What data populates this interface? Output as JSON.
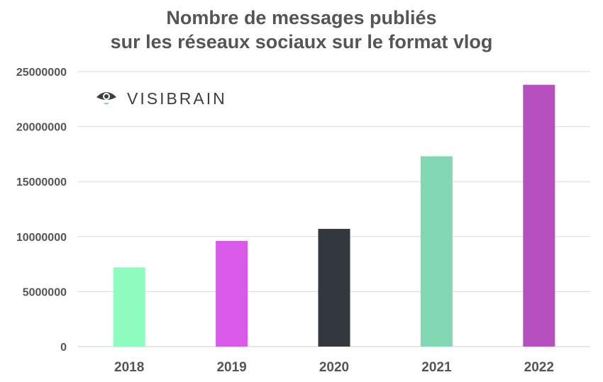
{
  "title": {
    "line1": "Nombre de messages publiés",
    "line2": "sur les réseaux sociaux sur le format vlog"
  },
  "brand": {
    "text": "VISIBRAIN",
    "icon": "eye-icon"
  },
  "chart_data": {
    "type": "bar",
    "title": "Nombre de messages publiés sur les réseaux sociaux sur le format vlog",
    "categories": [
      "2018",
      "2019",
      "2020",
      "2021",
      "2022"
    ],
    "values": [
      7200000,
      9600000,
      10700000,
      17300000,
      23800000
    ],
    "colors": [
      "#8ffcbf",
      "#d95ae8",
      "#33383f",
      "#82d8b2",
      "#b650be"
    ],
    "ylim": [
      0,
      25000000
    ],
    "yticks": [
      0,
      5000000,
      10000000,
      15000000,
      20000000,
      25000000
    ],
    "ytick_labels": [
      "0",
      "5000000",
      "10000000",
      "15000000",
      "20000000",
      "25000000"
    ],
    "xlabel": "",
    "ylabel": "",
    "grid": true,
    "legend": "none"
  }
}
